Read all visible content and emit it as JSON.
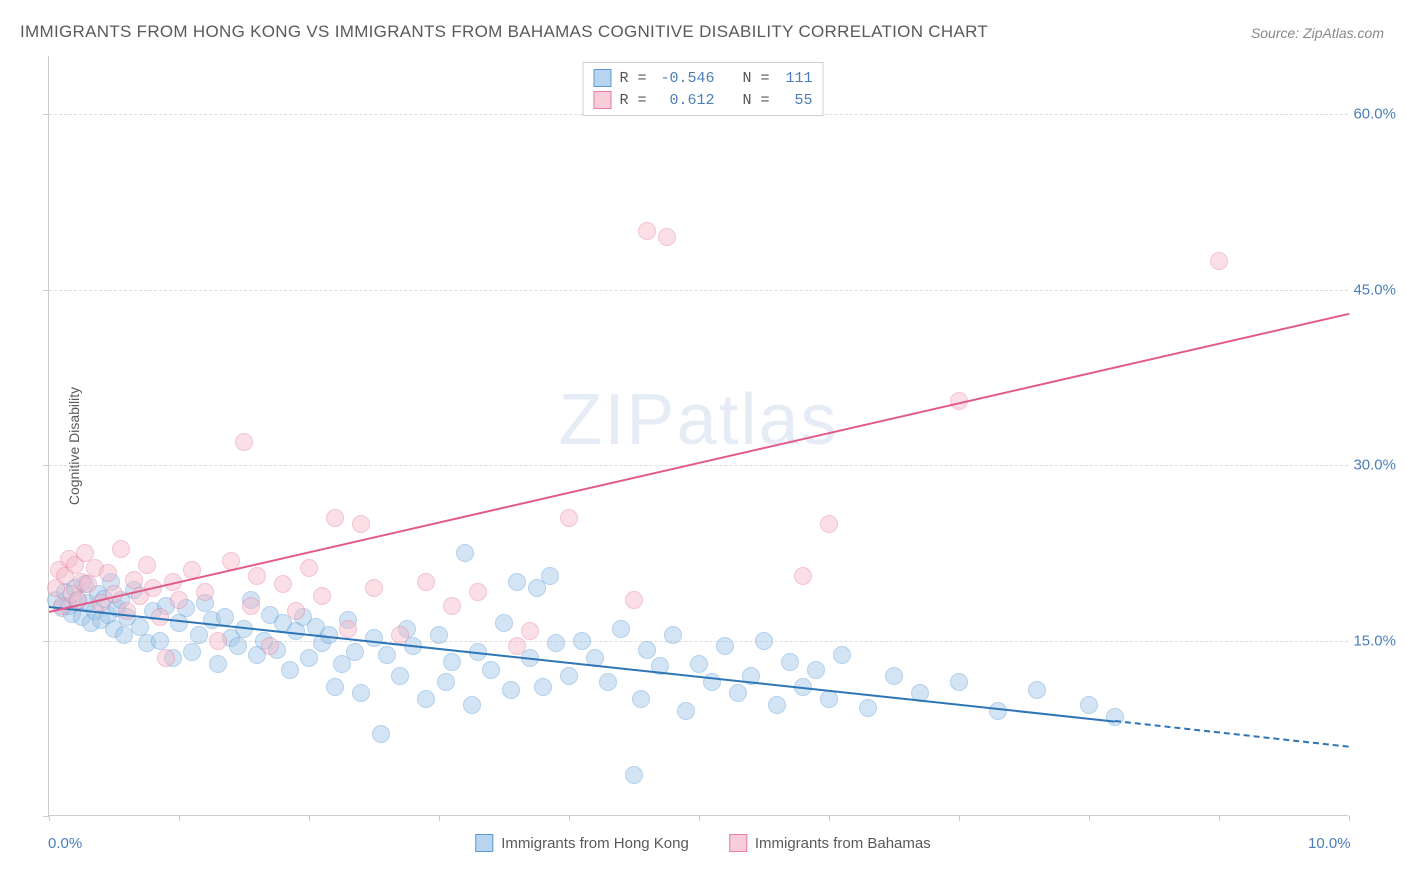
{
  "title": "IMMIGRANTS FROM HONG KONG VS IMMIGRANTS FROM BAHAMAS COGNITIVE DISABILITY CORRELATION CHART",
  "source": "Source: ZipAtlas.com",
  "y_axis_label": "Cognitive Disability",
  "watermark": {
    "part1": "ZIP",
    "part2": "atlas"
  },
  "chart": {
    "type": "scatter",
    "background_color": "#ffffff",
    "grid_color": "#dddddd",
    "border_color": "#cccccc",
    "xlim": [
      0,
      10
    ],
    "ylim": [
      0,
      65
    ],
    "x_ticks": [
      0,
      1,
      2,
      3,
      4,
      5,
      6,
      7,
      8,
      9,
      10
    ],
    "x_tick_labels": {
      "0": "0.0%",
      "10": "10.0%"
    },
    "y_gridlines": [
      15,
      30,
      45,
      60
    ],
    "y_tick_labels": {
      "15": "15.0%",
      "30": "30.0%",
      "45": "45.0%",
      "60": "60.0%"
    },
    "marker_radius": 9,
    "marker_opacity": 0.45,
    "series": [
      {
        "name": "Immigrants from Hong Kong",
        "legend_label": "Immigrants from Hong Kong",
        "marker_fill": "#9ec5e8",
        "marker_stroke": "#5b9bd5",
        "swatch_fill": "#b8d4ee",
        "swatch_stroke": "#5b9bd5",
        "trend_color": "#2e75b6",
        "R": "-0.546",
        "N": "111",
        "trend": {
          "x1": 0,
          "y1": 18.0,
          "x2": 8.2,
          "y2": 8.2,
          "dash_x2": 10,
          "dash_y2": 6.0
        },
        "points": [
          [
            0.05,
            18.5
          ],
          [
            0.1,
            17.8
          ],
          [
            0.12,
            19.2
          ],
          [
            0.15,
            18.0
          ],
          [
            0.18,
            17.3
          ],
          [
            0.2,
            19.5
          ],
          [
            0.22,
            18.4
          ],
          [
            0.25,
            17.0
          ],
          [
            0.28,
            19.8
          ],
          [
            0.3,
            18.2
          ],
          [
            0.32,
            16.5
          ],
          [
            0.35,
            17.5
          ],
          [
            0.38,
            19.0
          ],
          [
            0.4,
            16.8
          ],
          [
            0.42,
            18.6
          ],
          [
            0.45,
            17.2
          ],
          [
            0.48,
            20.0
          ],
          [
            0.5,
            16.0
          ],
          [
            0.52,
            17.8
          ],
          [
            0.55,
            18.5
          ],
          [
            0.58,
            15.5
          ],
          [
            0.6,
            17.0
          ],
          [
            0.65,
            19.3
          ],
          [
            0.7,
            16.2
          ],
          [
            0.75,
            14.8
          ],
          [
            0.8,
            17.5
          ],
          [
            0.85,
            15.0
          ],
          [
            0.9,
            18.0
          ],
          [
            0.95,
            13.5
          ],
          [
            1.0,
            16.5
          ],
          [
            1.05,
            17.8
          ],
          [
            1.1,
            14.0
          ],
          [
            1.15,
            15.5
          ],
          [
            1.2,
            18.2
          ],
          [
            1.25,
            16.8
          ],
          [
            1.3,
            13.0
          ],
          [
            1.35,
            17.0
          ],
          [
            1.4,
            15.2
          ],
          [
            1.45,
            14.5
          ],
          [
            1.5,
            16.0
          ],
          [
            1.55,
            18.5
          ],
          [
            1.6,
            13.8
          ],
          [
            1.65,
            15.0
          ],
          [
            1.7,
            17.2
          ],
          [
            1.75,
            14.2
          ],
          [
            1.8,
            16.5
          ],
          [
            1.85,
            12.5
          ],
          [
            1.9,
            15.8
          ],
          [
            1.95,
            17.0
          ],
          [
            2.0,
            13.5
          ],
          [
            2.05,
            16.2
          ],
          [
            2.1,
            14.8
          ],
          [
            2.15,
            15.5
          ],
          [
            2.2,
            11.0
          ],
          [
            2.25,
            13.0
          ],
          [
            2.3,
            16.8
          ],
          [
            2.35,
            14.0
          ],
          [
            2.4,
            10.5
          ],
          [
            2.5,
            15.2
          ],
          [
            2.55,
            7.0
          ],
          [
            2.6,
            13.8
          ],
          [
            2.7,
            12.0
          ],
          [
            2.75,
            16.0
          ],
          [
            2.8,
            14.5
          ],
          [
            2.9,
            10.0
          ],
          [
            3.0,
            15.5
          ],
          [
            3.05,
            11.5
          ],
          [
            3.1,
            13.2
          ],
          [
            3.2,
            22.5
          ],
          [
            3.25,
            9.5
          ],
          [
            3.3,
            14.0
          ],
          [
            3.4,
            12.5
          ],
          [
            3.5,
            16.5
          ],
          [
            3.55,
            10.8
          ],
          [
            3.6,
            20.0
          ],
          [
            3.7,
            13.5
          ],
          [
            3.75,
            19.5
          ],
          [
            3.8,
            11.0
          ],
          [
            3.85,
            20.5
          ],
          [
            3.9,
            14.8
          ],
          [
            4.0,
            12.0
          ],
          [
            4.1,
            15.0
          ],
          [
            4.2,
            13.5
          ],
          [
            4.3,
            11.5
          ],
          [
            4.4,
            16.0
          ],
          [
            4.5,
            3.5
          ],
          [
            4.55,
            10.0
          ],
          [
            4.6,
            14.2
          ],
          [
            4.7,
            12.8
          ],
          [
            4.8,
            15.5
          ],
          [
            4.9,
            9.0
          ],
          [
            5.0,
            13.0
          ],
          [
            5.1,
            11.5
          ],
          [
            5.2,
            14.5
          ],
          [
            5.3,
            10.5
          ],
          [
            5.4,
            12.0
          ],
          [
            5.5,
            15.0
          ],
          [
            5.6,
            9.5
          ],
          [
            5.7,
            13.2
          ],
          [
            5.8,
            11.0
          ],
          [
            5.9,
            12.5
          ],
          [
            6.0,
            10.0
          ],
          [
            6.1,
            13.8
          ],
          [
            6.3,
            9.2
          ],
          [
            6.5,
            12.0
          ],
          [
            6.7,
            10.5
          ],
          [
            7.0,
            11.5
          ],
          [
            7.3,
            9.0
          ],
          [
            7.6,
            10.8
          ],
          [
            8.0,
            9.5
          ],
          [
            8.2,
            8.5
          ]
        ]
      },
      {
        "name": "Immigrants from Bahamas",
        "legend_label": "Immigrants from Bahamas",
        "marker_fill": "#f4b9c9",
        "marker_stroke": "#e77ca0",
        "swatch_fill": "#f6cdd8",
        "swatch_stroke": "#e77ca0",
        "trend_color": "#e15a8a",
        "R": "0.612",
        "N": "55",
        "trend": {
          "x1": 0,
          "y1": 17.5,
          "x2": 10,
          "y2": 43.0
        },
        "points": [
          [
            0.05,
            19.5
          ],
          [
            0.08,
            21.0
          ],
          [
            0.1,
            18.0
          ],
          [
            0.12,
            20.5
          ],
          [
            0.15,
            22.0
          ],
          [
            0.18,
            19.0
          ],
          [
            0.2,
            21.5
          ],
          [
            0.22,
            18.5
          ],
          [
            0.25,
            20.0
          ],
          [
            0.28,
            22.5
          ],
          [
            0.3,
            19.8
          ],
          [
            0.35,
            21.2
          ],
          [
            0.4,
            18.2
          ],
          [
            0.45,
            20.8
          ],
          [
            0.5,
            19.0
          ],
          [
            0.55,
            22.8
          ],
          [
            0.6,
            17.5
          ],
          [
            0.65,
            20.2
          ],
          [
            0.7,
            18.8
          ],
          [
            0.75,
            21.5
          ],
          [
            0.8,
            19.5
          ],
          [
            0.85,
            17.0
          ],
          [
            0.9,
            13.5
          ],
          [
            0.95,
            20.0
          ],
          [
            1.0,
            18.5
          ],
          [
            1.1,
            21.0
          ],
          [
            1.2,
            19.2
          ],
          [
            1.3,
            15.0
          ],
          [
            1.4,
            21.8
          ],
          [
            1.5,
            32.0
          ],
          [
            1.55,
            18.0
          ],
          [
            1.6,
            20.5
          ],
          [
            1.7,
            14.5
          ],
          [
            1.8,
            19.8
          ],
          [
            1.9,
            17.5
          ],
          [
            2.0,
            21.2
          ],
          [
            2.1,
            18.8
          ],
          [
            2.2,
            25.5
          ],
          [
            2.3,
            16.0
          ],
          [
            2.4,
            25.0
          ],
          [
            2.5,
            19.5
          ],
          [
            2.7,
            15.5
          ],
          [
            2.9,
            20.0
          ],
          [
            3.1,
            18.0
          ],
          [
            3.3,
            19.2
          ],
          [
            3.6,
            14.5
          ],
          [
            3.7,
            15.8
          ],
          [
            4.0,
            25.5
          ],
          [
            4.5,
            18.5
          ],
          [
            4.6,
            50.0
          ],
          [
            4.75,
            49.5
          ],
          [
            5.8,
            20.5
          ],
          [
            6.0,
            25.0
          ],
          [
            7.0,
            35.5
          ],
          [
            9.0,
            47.5
          ]
        ]
      }
    ]
  },
  "legend_top": {
    "r_label": "R =",
    "n_label": "N ="
  }
}
